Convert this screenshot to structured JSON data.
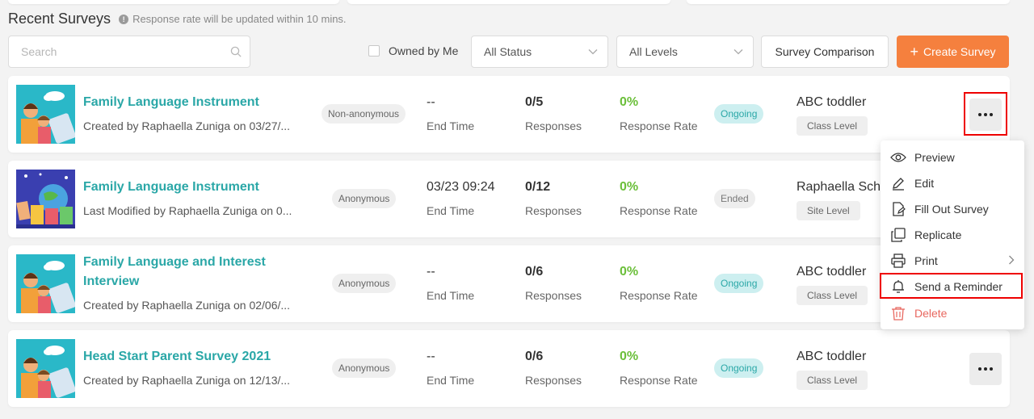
{
  "header": {
    "title": "Recent Surveys",
    "note_icon": "info-icon",
    "note": "Response rate will be updated within 10 mins."
  },
  "toolbar": {
    "search_placeholder": "Search",
    "search_value": "",
    "owned_by_me_label": "Owned by Me",
    "owned_by_me_checked": false,
    "status_filter": "All Status",
    "level_filter": "All Levels",
    "compare_label": "Survey Comparison",
    "create_label": "Create Survey"
  },
  "surveys": [
    {
      "name": "Family Language Instrument",
      "creator": "Created by Raphaella Zuniga on 03/27/...",
      "anonymity": "Non-anonymous",
      "end_value": "--",
      "end_label": "End Time",
      "responses_value": "0/5",
      "responses_label": "Responses",
      "rate_value": "0%",
      "rate_label": "Response Rate",
      "status": "Ongoing",
      "school": "ABC toddler",
      "level": "Class Level"
    },
    {
      "name": "Family Language Instrument",
      "creator": "Last Modified by Raphaella Zuniga on 0...",
      "anonymity": "Anonymous",
      "end_value": "03/23 09:24",
      "end_label": "End Time",
      "responses_value": "0/12",
      "responses_label": "Responses",
      "rate_value": "0%",
      "rate_label": "Response Rate",
      "status": "Ended",
      "school": "Raphaella Sch",
      "level": "Site Level"
    },
    {
      "name": "Family Language and Interest Interview",
      "creator": "Created by Raphaella Zuniga on 02/06/...",
      "anonymity": "Anonymous",
      "end_value": "--",
      "end_label": "End Time",
      "responses_value": "0/6",
      "responses_label": "Responses",
      "rate_value": "0%",
      "rate_label": "Response Rate",
      "status": "Ongoing",
      "school": "ABC toddler",
      "level": "Class Level"
    },
    {
      "name": "Head Start Parent Survey 2021",
      "creator": "Created by Raphaella Zuniga on 12/13/...",
      "anonymity": "Anonymous",
      "end_value": "--",
      "end_label": "End Time",
      "responses_value": "0/6",
      "responses_label": "Responses",
      "rate_value": "0%",
      "rate_label": "Response Rate",
      "status": "Ongoing",
      "school": "ABC toddler",
      "level": "Class Level"
    }
  ],
  "menu": {
    "items": [
      {
        "label": "Preview",
        "icon": "eye-icon"
      },
      {
        "label": "Edit",
        "icon": "pencil-icon"
      },
      {
        "label": "Fill Out Survey",
        "icon": "fill-out-icon"
      },
      {
        "label": "Replicate",
        "icon": "copy-icon"
      },
      {
        "label": "Print",
        "icon": "printer-icon"
      },
      {
        "label": "Send a Reminder",
        "icon": "bell-icon"
      },
      {
        "label": "Delete",
        "icon": "trash-icon"
      }
    ]
  },
  "colors": {
    "accent_teal": "#2aa7a7",
    "create_orange": "#f5803e",
    "rate_green": "#6bbf3a",
    "delete_red": "#e8675f",
    "highlight_red": "#e00000"
  }
}
